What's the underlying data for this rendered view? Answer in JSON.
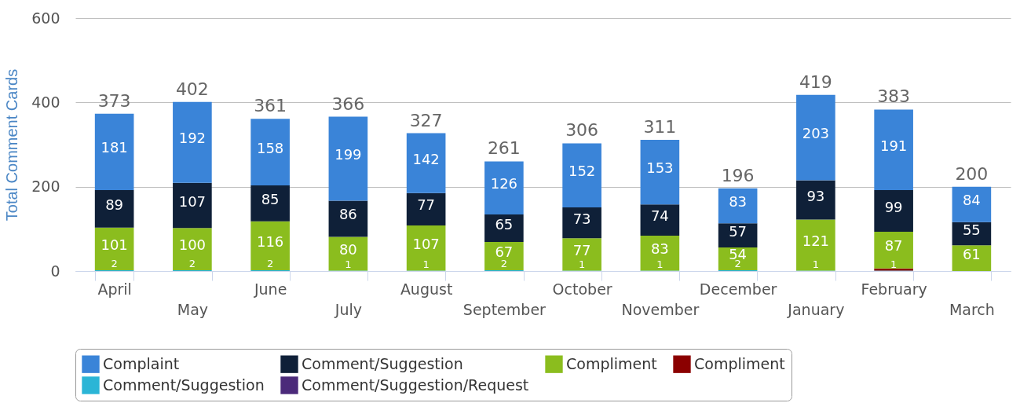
{
  "chart_data": {
    "type": "bar",
    "stacked": true,
    "ylabel": "Total Comment Cards",
    "categories": [
      "April",
      "May",
      "June",
      "July",
      "August",
      "September",
      "October",
      "November",
      "December",
      "January",
      "February",
      "March"
    ],
    "series": [
      {
        "name": "Comment/Suggestion/Request",
        "color": "#4b2a7a",
        "values": [
          null,
          null,
          null,
          null,
          null,
          null,
          null,
          null,
          null,
          null,
          null,
          null
        ]
      },
      {
        "name": "Comment/Suggestion",
        "color": "#2bb5d6",
        "values": [
          2,
          2,
          2,
          1,
          1,
          2,
          1,
          1,
          2,
          1,
          1,
          null
        ]
      },
      {
        "name": "Compliment",
        "color": "#8b0000",
        "values": [
          null,
          null,
          null,
          null,
          null,
          null,
          null,
          null,
          null,
          null,
          5,
          null
        ],
        "value_labels": [
          null,
          null,
          null,
          null,
          null,
          null,
          null,
          null,
          null,
          null,
          null,
          null
        ]
      },
      {
        "name": "Compliment",
        "color": "#8bbd1e",
        "values": [
          101,
          100,
          116,
          80,
          107,
          67,
          77,
          83,
          54,
          121,
          87,
          61
        ]
      },
      {
        "name": "Comment/Suggestion",
        "color": "#0f2038",
        "values": [
          89,
          107,
          85,
          86,
          77,
          65,
          73,
          74,
          57,
          93,
          99,
          55
        ]
      },
      {
        "name": "Complaint",
        "color": "#3a84d8",
        "values": [
          181,
          192,
          158,
          199,
          142,
          126,
          152,
          153,
          83,
          203,
          191,
          84
        ]
      }
    ],
    "totals": [
      "373",
      "402",
      "361",
      "366",
      "327",
      "261",
      "306",
      "311",
      "196",
      "419",
      "383",
      "200"
    ],
    "data_labels": true,
    "ylim": [
      0,
      600
    ],
    "yticks": [
      0,
      200,
      400,
      600
    ],
    "grid": "y",
    "legend": "bottom"
  }
}
